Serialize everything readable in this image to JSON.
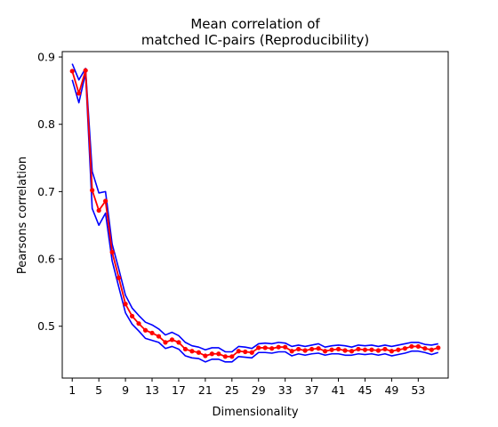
{
  "chart_data": {
    "type": "line",
    "title_lines": [
      "Mean correlation of",
      "matched IC-pairs (Reproducibility)"
    ],
    "xlabel": "Dimensionality",
    "ylabel": "Pearsons correlation",
    "xlim": [
      -0.5,
      57.5
    ],
    "ylim": [
      0.423,
      0.908
    ],
    "xticks": [
      1,
      5,
      9,
      13,
      17,
      21,
      25,
      29,
      33,
      37,
      41,
      45,
      49,
      53
    ],
    "yticks": [
      0.5,
      0.6,
      0.7,
      0.8,
      0.9
    ],
    "grid": false,
    "legend": "none",
    "x": [
      1,
      2,
      3,
      4,
      5,
      6,
      7,
      8,
      9,
      10,
      11,
      12,
      13,
      14,
      15,
      16,
      17,
      18,
      19,
      20,
      21,
      22,
      23,
      24,
      25,
      26,
      27,
      28,
      29,
      30,
      31,
      32,
      33,
      34,
      35,
      36,
      37,
      38,
      39,
      40,
      41,
      42,
      43,
      44,
      45,
      46,
      47,
      48,
      49,
      50,
      51,
      52,
      53,
      54,
      55,
      56
    ],
    "series": [
      {
        "role": "mean",
        "color": "#ff0000",
        "marker": "dot",
        "values": [
          0.879,
          0.846,
          0.88,
          0.702,
          0.672,
          0.686,
          0.61,
          0.572,
          0.533,
          0.515,
          0.504,
          0.494,
          0.49,
          0.485,
          0.476,
          0.48,
          0.476,
          0.466,
          0.463,
          0.461,
          0.456,
          0.459,
          0.459,
          0.455,
          0.455,
          0.463,
          0.462,
          0.461,
          0.468,
          0.468,
          0.467,
          0.469,
          0.469,
          0.463,
          0.466,
          0.464,
          0.466,
          0.467,
          0.463,
          0.465,
          0.466,
          0.464,
          0.463,
          0.466,
          0.465,
          0.465,
          0.464,
          0.466,
          0.463,
          0.465,
          0.467,
          0.47,
          0.47,
          0.467,
          0.465,
          0.468
        ]
      },
      {
        "role": "upper",
        "color": "#0000ff",
        "values": [
          0.89,
          0.866,
          0.883,
          0.73,
          0.698,
          0.7,
          0.622,
          0.585,
          0.546,
          0.527,
          0.516,
          0.506,
          0.502,
          0.496,
          0.487,
          0.491,
          0.486,
          0.476,
          0.471,
          0.469,
          0.465,
          0.468,
          0.468,
          0.462,
          0.462,
          0.47,
          0.469,
          0.467,
          0.474,
          0.475,
          0.474,
          0.476,
          0.475,
          0.47,
          0.472,
          0.47,
          0.472,
          0.474,
          0.469,
          0.471,
          0.472,
          0.471,
          0.469,
          0.472,
          0.471,
          0.472,
          0.47,
          0.472,
          0.47,
          0.472,
          0.474,
          0.476,
          0.476,
          0.473,
          0.472,
          0.474
        ]
      },
      {
        "role": "lower",
        "color": "#0000ff",
        "values": [
          0.866,
          0.832,
          0.876,
          0.675,
          0.65,
          0.668,
          0.597,
          0.558,
          0.52,
          0.503,
          0.493,
          0.482,
          0.479,
          0.476,
          0.467,
          0.47,
          0.466,
          0.456,
          0.453,
          0.452,
          0.447,
          0.451,
          0.451,
          0.447,
          0.447,
          0.455,
          0.454,
          0.453,
          0.461,
          0.461,
          0.46,
          0.462,
          0.462,
          0.456,
          0.459,
          0.457,
          0.459,
          0.46,
          0.457,
          0.459,
          0.459,
          0.457,
          0.457,
          0.459,
          0.458,
          0.459,
          0.457,
          0.459,
          0.456,
          0.458,
          0.46,
          0.463,
          0.463,
          0.461,
          0.458,
          0.461
        ]
      }
    ]
  }
}
